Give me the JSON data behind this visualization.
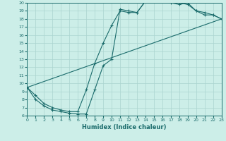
{
  "xlabel": "Humidex (Indice chaleur)",
  "bg_color": "#cceee8",
  "line_color": "#1a6b6b",
  "grid_color": "#aad4cf",
  "xlim": [
    0,
    23
  ],
  "ylim": [
    6,
    20
  ],
  "xticks": [
    0,
    1,
    2,
    3,
    4,
    5,
    6,
    7,
    8,
    9,
    10,
    11,
    12,
    13,
    14,
    15,
    16,
    17,
    18,
    19,
    20,
    21,
    22,
    23
  ],
  "yticks": [
    6,
    7,
    8,
    9,
    10,
    11,
    12,
    13,
    14,
    15,
    16,
    17,
    18,
    19,
    20
  ],
  "series1_x": [
    0,
    1,
    2,
    3,
    4,
    5,
    6,
    7,
    8,
    9,
    10,
    11,
    12,
    13,
    14,
    15,
    16,
    17,
    18,
    19,
    20,
    21,
    22,
    23
  ],
  "series1_y": [
    9.5,
    8.0,
    7.2,
    6.7,
    6.5,
    6.3,
    6.2,
    6.2,
    9.2,
    12.2,
    13.0,
    19.2,
    19.0,
    18.8,
    20.2,
    20.5,
    20.4,
    20.2,
    20.0,
    19.8,
    19.0,
    18.8,
    18.5,
    18.0
  ],
  "series2_x": [
    0,
    1,
    2,
    3,
    4,
    5,
    6,
    7,
    8,
    9,
    10,
    11,
    12,
    13,
    14,
    15,
    16,
    17,
    18,
    19,
    20,
    21,
    22,
    23
  ],
  "series2_y": [
    9.5,
    8.5,
    7.5,
    7.0,
    6.7,
    6.5,
    6.5,
    9.2,
    12.5,
    15.0,
    17.2,
    19.0,
    18.8,
    18.8,
    20.2,
    20.5,
    20.3,
    20.0,
    19.8,
    20.0,
    19.0,
    18.5,
    18.5,
    18.0
  ],
  "series3_x": [
    0,
    23
  ],
  "series3_y": [
    9.5,
    18.0
  ]
}
